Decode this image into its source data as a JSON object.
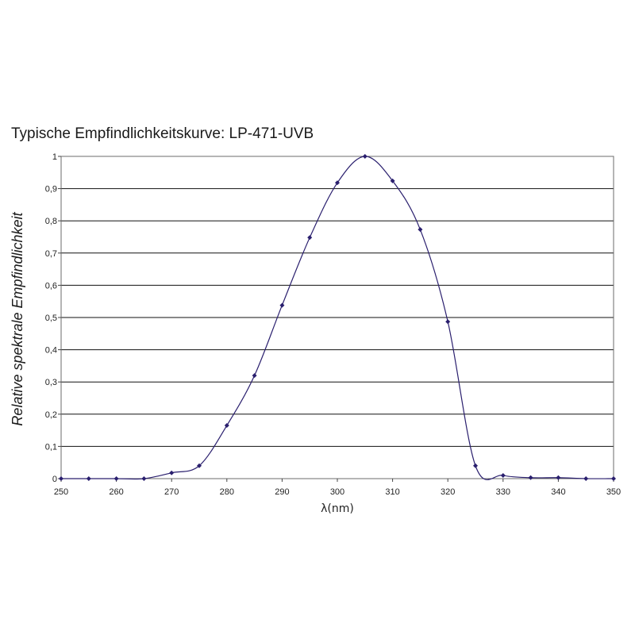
{
  "chart_data": {
    "type": "line",
    "title": "Typische Empfindlichkeitskurve: LP-471-UVB",
    "xlabel": "λ(nm)",
    "ylabel": "Relative spektrale Empfindlichkeit",
    "xlim": [
      250,
      350
    ],
    "ylim": [
      0,
      1
    ],
    "grid": true,
    "x_ticks": [
      "250",
      "260",
      "270",
      "280",
      "290",
      "300",
      "310",
      "320",
      "330",
      "340",
      "350"
    ],
    "y_ticks": [
      "0",
      "0,1",
      "0,2",
      "0,3",
      "0,4",
      "0,5",
      "0,6",
      "0,7",
      "0,8",
      "0,9",
      "1"
    ],
    "series": [
      {
        "color": "#2a1f6e",
        "marker": "diamond",
        "x": [
          250,
          255,
          260,
          265,
          270,
          275,
          280,
          285,
          290,
          295,
          300,
          305,
          310,
          315,
          320,
          325,
          330,
          335,
          340,
          345,
          350
        ],
        "y": [
          0,
          0,
          0,
          0,
          0.018,
          0.04,
          0.165,
          0.32,
          0.538,
          0.748,
          0.918,
          1.0,
          0.924,
          0.773,
          0.487,
          0.04,
          0.01,
          0.003,
          0.003,
          0,
          0
        ]
      }
    ]
  }
}
